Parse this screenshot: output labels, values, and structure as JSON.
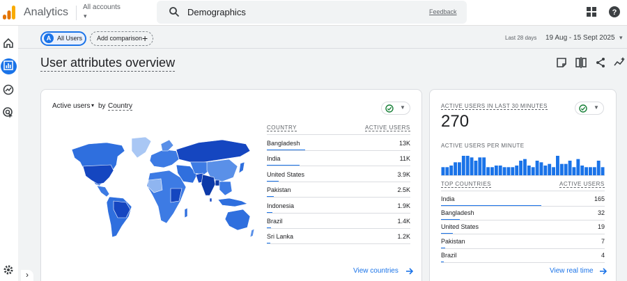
{
  "header": {
    "app_title": "Analytics",
    "accounts_label": "All accounts",
    "search_value": "Demographics",
    "feedback_label": "Feedback"
  },
  "filters": {
    "segment_initial": "A",
    "segment_label": "All Users",
    "add_comparison_label": "Add comparison",
    "range_label": "Last 28 days",
    "range_value": "19 Aug - 15 Sept 2025"
  },
  "page": {
    "title": "User attributes overview"
  },
  "country_card": {
    "metric_label": "Active users",
    "by_label": "by",
    "dimension_label": "Country",
    "col_country": "COUNTRY",
    "col_users": "ACTIVE USERS",
    "rows": [
      {
        "name": "Bangladesh",
        "value": "13K",
        "share": 1.0
      },
      {
        "name": "India",
        "value": "11K",
        "share": 0.85
      },
      {
        "name": "United States",
        "value": "3.9K",
        "share": 0.3
      },
      {
        "name": "Pakistan",
        "value": "2.5K",
        "share": 0.19
      },
      {
        "name": "Indonesia",
        "value": "1.9K",
        "share": 0.15
      },
      {
        "name": "Brazil",
        "value": "1.4K",
        "share": 0.11
      },
      {
        "name": "Sri Lanka",
        "value": "1.2K",
        "share": 0.09
      }
    ],
    "link_label": "View countries"
  },
  "realtime_card": {
    "title": "ACTIVE USERS IN LAST 30 MINUTES",
    "value": "270",
    "per_minute_label": "ACTIVE USERS PER MINUTE",
    "per_minute": [
      5,
      5,
      6,
      8,
      8,
      12,
      12,
      11,
      9,
      11,
      11,
      5,
      5,
      6,
      6,
      5,
      5,
      5,
      6,
      9,
      10,
      6,
      5,
      9,
      8,
      6,
      7,
      5,
      12,
      7,
      7,
      9,
      5,
      10,
      6,
      5,
      5,
      5,
      9,
      5
    ],
    "col_countries": "TOP COUNTRIES",
    "col_users": "ACTIVE USERS",
    "rows": [
      {
        "name": "India",
        "value": "165",
        "share": 1.0
      },
      {
        "name": "Bangladesh",
        "value": "32",
        "share": 0.19
      },
      {
        "name": "United States",
        "value": "19",
        "share": 0.12
      },
      {
        "name": "Pakistan",
        "value": "7",
        "share": 0.04
      },
      {
        "name": "Brazil",
        "value": "4",
        "share": 0.03
      }
    ],
    "link_label": "View real time"
  },
  "colors": {
    "accent": "#1a73e8",
    "map_dark": "#1546c0",
    "map_mid": "#2f6fde",
    "map_light": "#8fb5f0"
  }
}
